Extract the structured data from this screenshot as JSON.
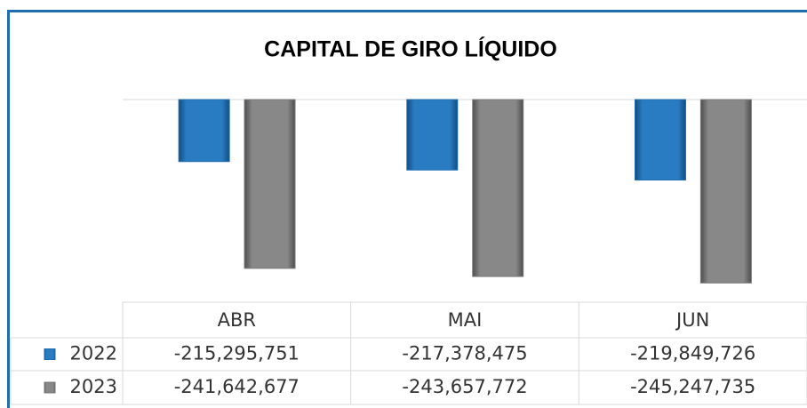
{
  "chart_data": {
    "type": "bar",
    "title": "CAPITAL DE GIRO LÍQUIDO",
    "categories": [
      "ABR",
      "MAI",
      "JUN"
    ],
    "series": [
      {
        "name": "2022",
        "color": "#1f6db0",
        "values": [
          -215295751,
          -217378475,
          -219849726
        ],
        "value_labels": [
          "-215,295,751",
          "-217,378,475",
          "-219,849,726"
        ]
      },
      {
        "name": "2023",
        "color": "#7a7a7a",
        "values": [
          -241642677,
          -243657772,
          -245247735
        ],
        "value_labels": [
          "-241,642,677",
          "-243,657,772",
          "-245,247,735"
        ]
      }
    ],
    "ylim": [
      -250000000,
      -200000000
    ]
  }
}
